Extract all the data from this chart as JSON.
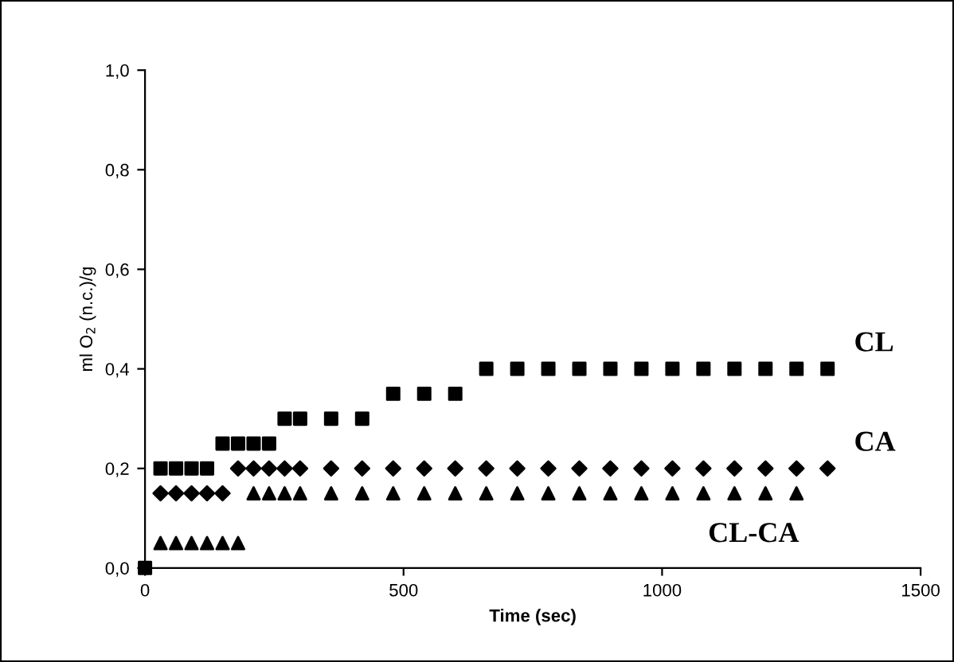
{
  "chart_data": {
    "type": "scatter",
    "xlabel": "Time (sec)",
    "ylabel": "ml O$_{2}$ (n.c.)/g",
    "xlim": [
      0,
      1500
    ],
    "xticks": [
      0,
      500,
      1000,
      1500
    ],
    "ylim": [
      0,
      1
    ],
    "yticks": [
      {
        "value": 0,
        "label": "0,0"
      },
      {
        "value": 0.2,
        "label": "0,2"
      },
      {
        "value": 0.4,
        "label": "0,4"
      },
      {
        "value": 0.6,
        "label": "0,6"
      },
      {
        "value": 0.8,
        "label": "0,8"
      },
      {
        "value": 1,
        "label": "1,0"
      }
    ],
    "grid": false,
    "legend": false,
    "series": [
      {
        "name": "CL",
        "color": "#000000",
        "marker": "square",
        "x": [
          0,
          30,
          60,
          90,
          120,
          150,
          180,
          210,
          240,
          270,
          300,
          360,
          420,
          480,
          540,
          600,
          660,
          720,
          780,
          840,
          900,
          960,
          1020,
          1080,
          1140,
          1200,
          1260,
          1320
        ],
        "values": [
          0,
          0.2,
          0.2,
          0.2,
          0.2,
          0.25,
          0.25,
          0.25,
          0.25,
          0.3,
          0.3,
          0.3,
          0.3,
          0.35,
          0.35,
          0.35,
          0.4,
          0.4,
          0.4,
          0.4,
          0.4,
          0.4,
          0.4,
          0.4,
          0.4,
          0.4,
          0.4,
          0.4
        ]
      },
      {
        "name": "CA",
        "color": "#000000",
        "marker": "diamond",
        "x": [
          30,
          60,
          90,
          120,
          150,
          180,
          210,
          240,
          270,
          300,
          360,
          420,
          480,
          540,
          600,
          660,
          720,
          780,
          840,
          900,
          960,
          1020,
          1080,
          1140,
          1200,
          1260,
          1320
        ],
        "values": [
          0.15,
          0.15,
          0.15,
          0.15,
          0.15,
          0.2,
          0.2,
          0.2,
          0.2,
          0.2,
          0.2,
          0.2,
          0.2,
          0.2,
          0.2,
          0.2,
          0.2,
          0.2,
          0.2,
          0.2,
          0.2,
          0.2,
          0.2,
          0.2,
          0.2,
          0.2,
          0.2
        ]
      },
      {
        "name": "CL-CA",
        "color": "#000000",
        "marker": "triangle",
        "x": [
          30,
          60,
          90,
          120,
          150,
          180,
          210,
          240,
          270,
          300,
          360,
          420,
          480,
          540,
          600,
          660,
          720,
          780,
          840,
          900,
          960,
          1020,
          1080,
          1140,
          1200,
          1260
        ],
        "values": [
          0.05,
          0.05,
          0.05,
          0.05,
          0.05,
          0.05,
          0.15,
          0.15,
          0.15,
          0.15,
          0.15,
          0.15,
          0.15,
          0.15,
          0.15,
          0.15,
          0.15,
          0.15,
          0.15,
          0.15,
          0.15,
          0.15,
          0.15,
          0.15,
          0.15,
          0.15
        ]
      }
    ]
  }
}
